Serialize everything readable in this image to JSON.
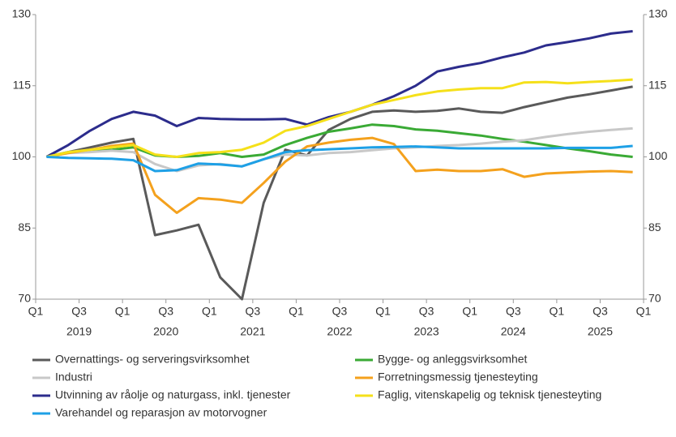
{
  "chart_data": {
    "type": "line",
    "xticks": [
      "Q1",
      "Q3",
      "Q1",
      "Q3",
      "Q1",
      "Q3",
      "Q1",
      "Q3",
      "Q1",
      "Q3",
      "Q1",
      "Q3",
      "Q1",
      "Q3",
      "Q1"
    ],
    "year_labels": [
      "2019",
      "2020",
      "2021",
      "2022",
      "2023",
      "2024",
      "2025"
    ],
    "ylim": [
      70,
      130
    ],
    "yticks": [
      70,
      85,
      100,
      115,
      130
    ],
    "y2lim": [
      70,
      130
    ],
    "y2ticks": [
      70,
      85,
      100,
      115,
      130
    ],
    "legend": "bottom",
    "series": [
      {
        "name": "Overnattings- og serveringsvirksomhet",
        "color": "#5a5a5a",
        "values": [
          100,
          101,
          102,
          103,
          103.8,
          83.5,
          84.5,
          85.7,
          74.6,
          70,
          90.3,
          101.5,
          100.3,
          105.7,
          108,
          109.5,
          109.8,
          109.5,
          109.7,
          110.2,
          109.5,
          109.3,
          110.5,
          111.5,
          112.5,
          113.2,
          114,
          114.8
        ]
      },
      {
        "name": "Bygge- og anleggsvirksomhet",
        "color": "#3aaa35",
        "values": [
          100,
          101,
          101.3,
          101.5,
          102,
          100.3,
          100,
          100.2,
          100.8,
          100,
          100.5,
          102.5,
          104,
          105.3,
          106,
          106.8,
          106.5,
          105.8,
          105.5,
          105,
          104.5,
          103.8,
          103.2,
          102.5,
          101.8,
          101.2,
          100.5,
          100
        ]
      },
      {
        "name": "Industri",
        "color": "#c8c8c8",
        "values": [
          100,
          100.8,
          101,
          101.3,
          101,
          98.5,
          97,
          98.2,
          98.5,
          98,
          99.5,
          100.5,
          100.3,
          100.8,
          101,
          101.4,
          101.8,
          102,
          102.3,
          102.5,
          102.8,
          103.2,
          103.5,
          104.2,
          104.8,
          105.3,
          105.7,
          106
        ]
      },
      {
        "name": "Forretningsmessig tjenesteyting",
        "color": "#f4a11d",
        "values": [
          100,
          100.8,
          101.5,
          102.3,
          102.8,
          92,
          88.2,
          91.3,
          91,
          90.3,
          94.5,
          99,
          102.2,
          103,
          103.6,
          104,
          102.7,
          97,
          97.3,
          97,
          97,
          97.4,
          95.8,
          96.5,
          96.7,
          96.9,
          97,
          96.8
        ]
      },
      {
        "name": "Utvinning av råolje og naturgass, inkl. tjenester",
        "color": "#2c2c8c",
        "values": [
          100,
          102.5,
          105.5,
          108,
          109.5,
          108.7,
          106.5,
          108.2,
          108,
          107.9,
          107.9,
          108,
          106.8,
          108.4,
          109.5,
          111,
          112.8,
          115,
          118,
          119,
          119.8,
          121,
          122,
          123.5,
          124.2,
          125,
          126,
          126.5
        ]
      },
      {
        "name": "Faglig, vitenskapelig og teknisk tjenesteyting",
        "color": "#f5e01a",
        "values": [
          100,
          101,
          101.5,
          102,
          102.5,
          100.5,
          100,
          100.8,
          101,
          101.5,
          103,
          105.5,
          106.5,
          108,
          109.5,
          111,
          112,
          113,
          113.8,
          114.2,
          114.5,
          114.5,
          115.7,
          115.8,
          115.5,
          115.8,
          116,
          116.3
        ]
      },
      {
        "name": "Varehandel og reparasjon av motorvogner",
        "color": "#1ea0e6",
        "values": [
          100,
          99.8,
          99.7,
          99.6,
          99.3,
          97,
          97.2,
          98.6,
          98.4,
          98,
          99.5,
          101,
          101.4,
          101.6,
          101.8,
          102,
          102.1,
          102.2,
          102,
          101.8,
          101.8,
          101.8,
          101.8,
          101.8,
          101.9,
          101.9,
          101.9,
          102.3
        ]
      }
    ]
  }
}
